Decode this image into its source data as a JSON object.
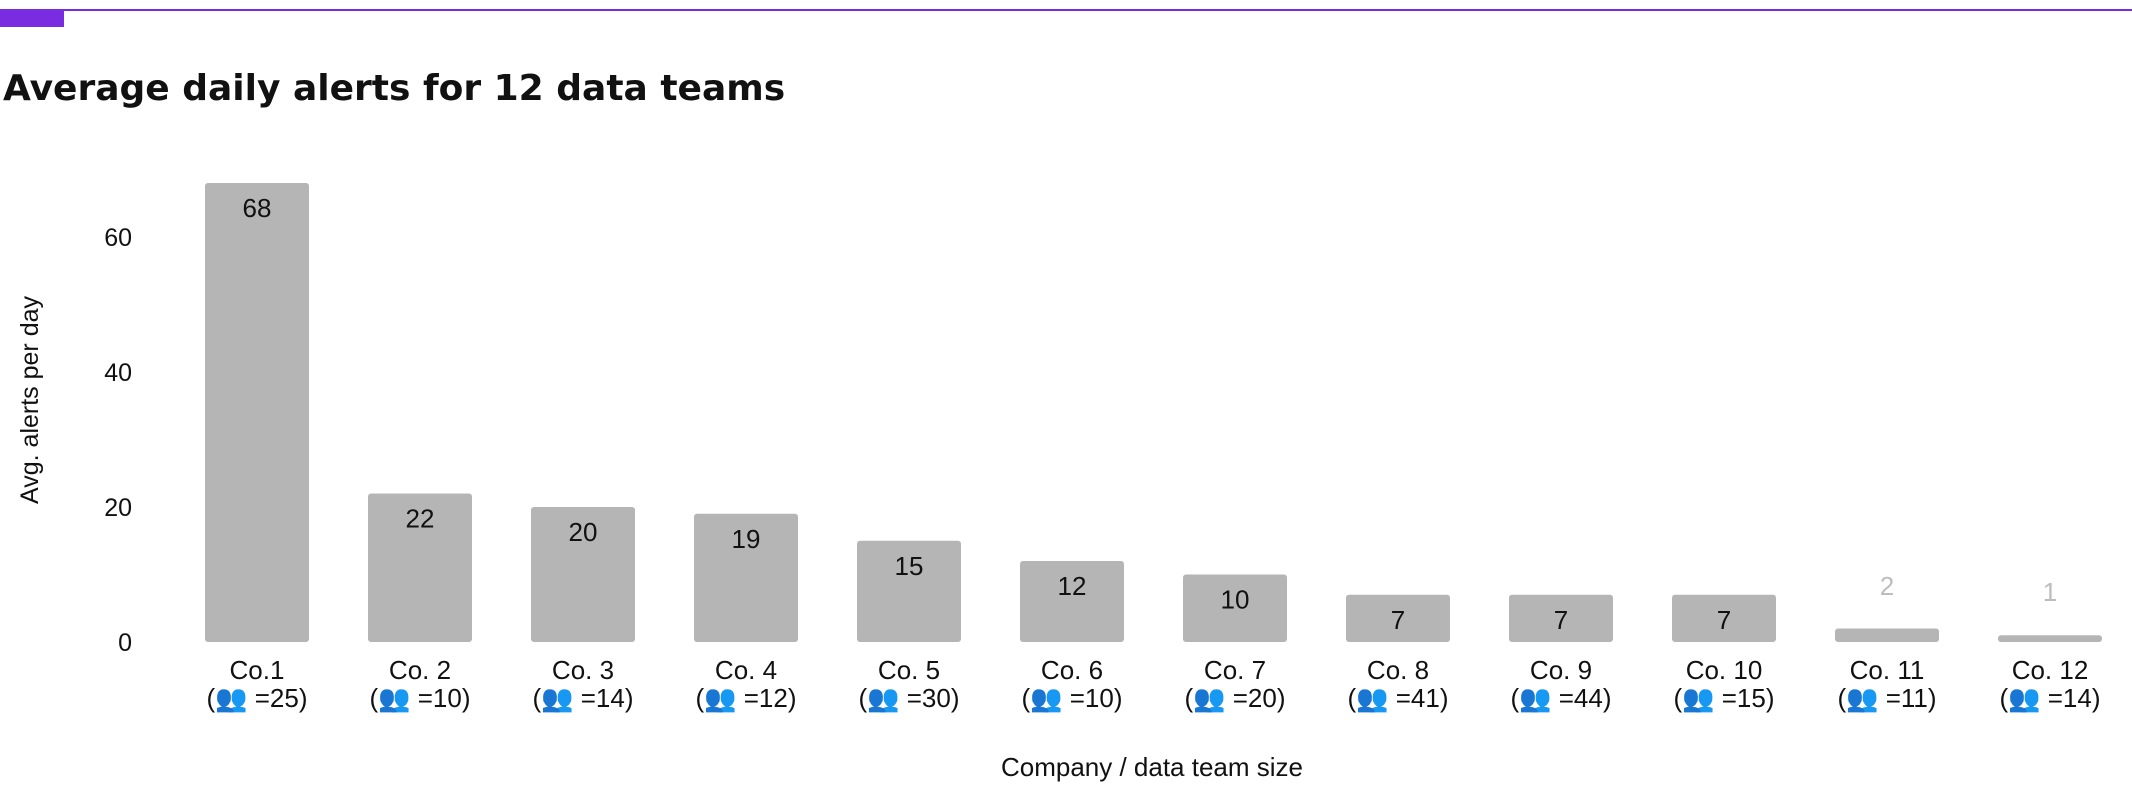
{
  "accent_color": "#7a2de0",
  "chart_data": {
    "type": "bar",
    "title": "Average daily alerts for 12 data teams",
    "xlabel": "Company / data team size",
    "ylabel": "Avg. alerts per day",
    "ylim": [
      0,
      68
    ],
    "yticks": [
      0,
      20,
      40,
      60
    ],
    "grid": false,
    "legend": "none",
    "bar_color": "#b5b5b5",
    "team_size_icon": "people-icon",
    "categories": [
      {
        "name": "Co.1",
        "team_size": "(👥 =25)"
      },
      {
        "name": "Co. 2",
        "team_size": "(👥 =10)"
      },
      {
        "name": "Co. 3",
        "team_size": "(👥 =14)"
      },
      {
        "name": "Co. 4",
        "team_size": "(👥 =12)"
      },
      {
        "name": "Co. 5",
        "team_size": "(👥 =30)"
      },
      {
        "name": "Co. 6",
        "team_size": "(👥 =10)"
      },
      {
        "name": "Co. 7",
        "team_size": "(👥 =20)"
      },
      {
        "name": "Co. 8",
        "team_size": "(👥 =41)"
      },
      {
        "name": "Co. 9",
        "team_size": "(👥 =44)"
      },
      {
        "name": "Co. 10",
        "team_size": "(👥 =15)"
      },
      {
        "name": "Co. 11",
        "team_size": "(👥 =11)"
      },
      {
        "name": "Co. 12",
        "team_size": "(👥 =14)"
      }
    ],
    "values": [
      68,
      22,
      20,
      19,
      15,
      12,
      10,
      7,
      7,
      7,
      2,
      1
    ],
    "data_labels": [
      "68",
      "22",
      "20",
      "19",
      "15",
      "12",
      "10",
      "7",
      "7",
      "7",
      "2",
      "1"
    ]
  }
}
